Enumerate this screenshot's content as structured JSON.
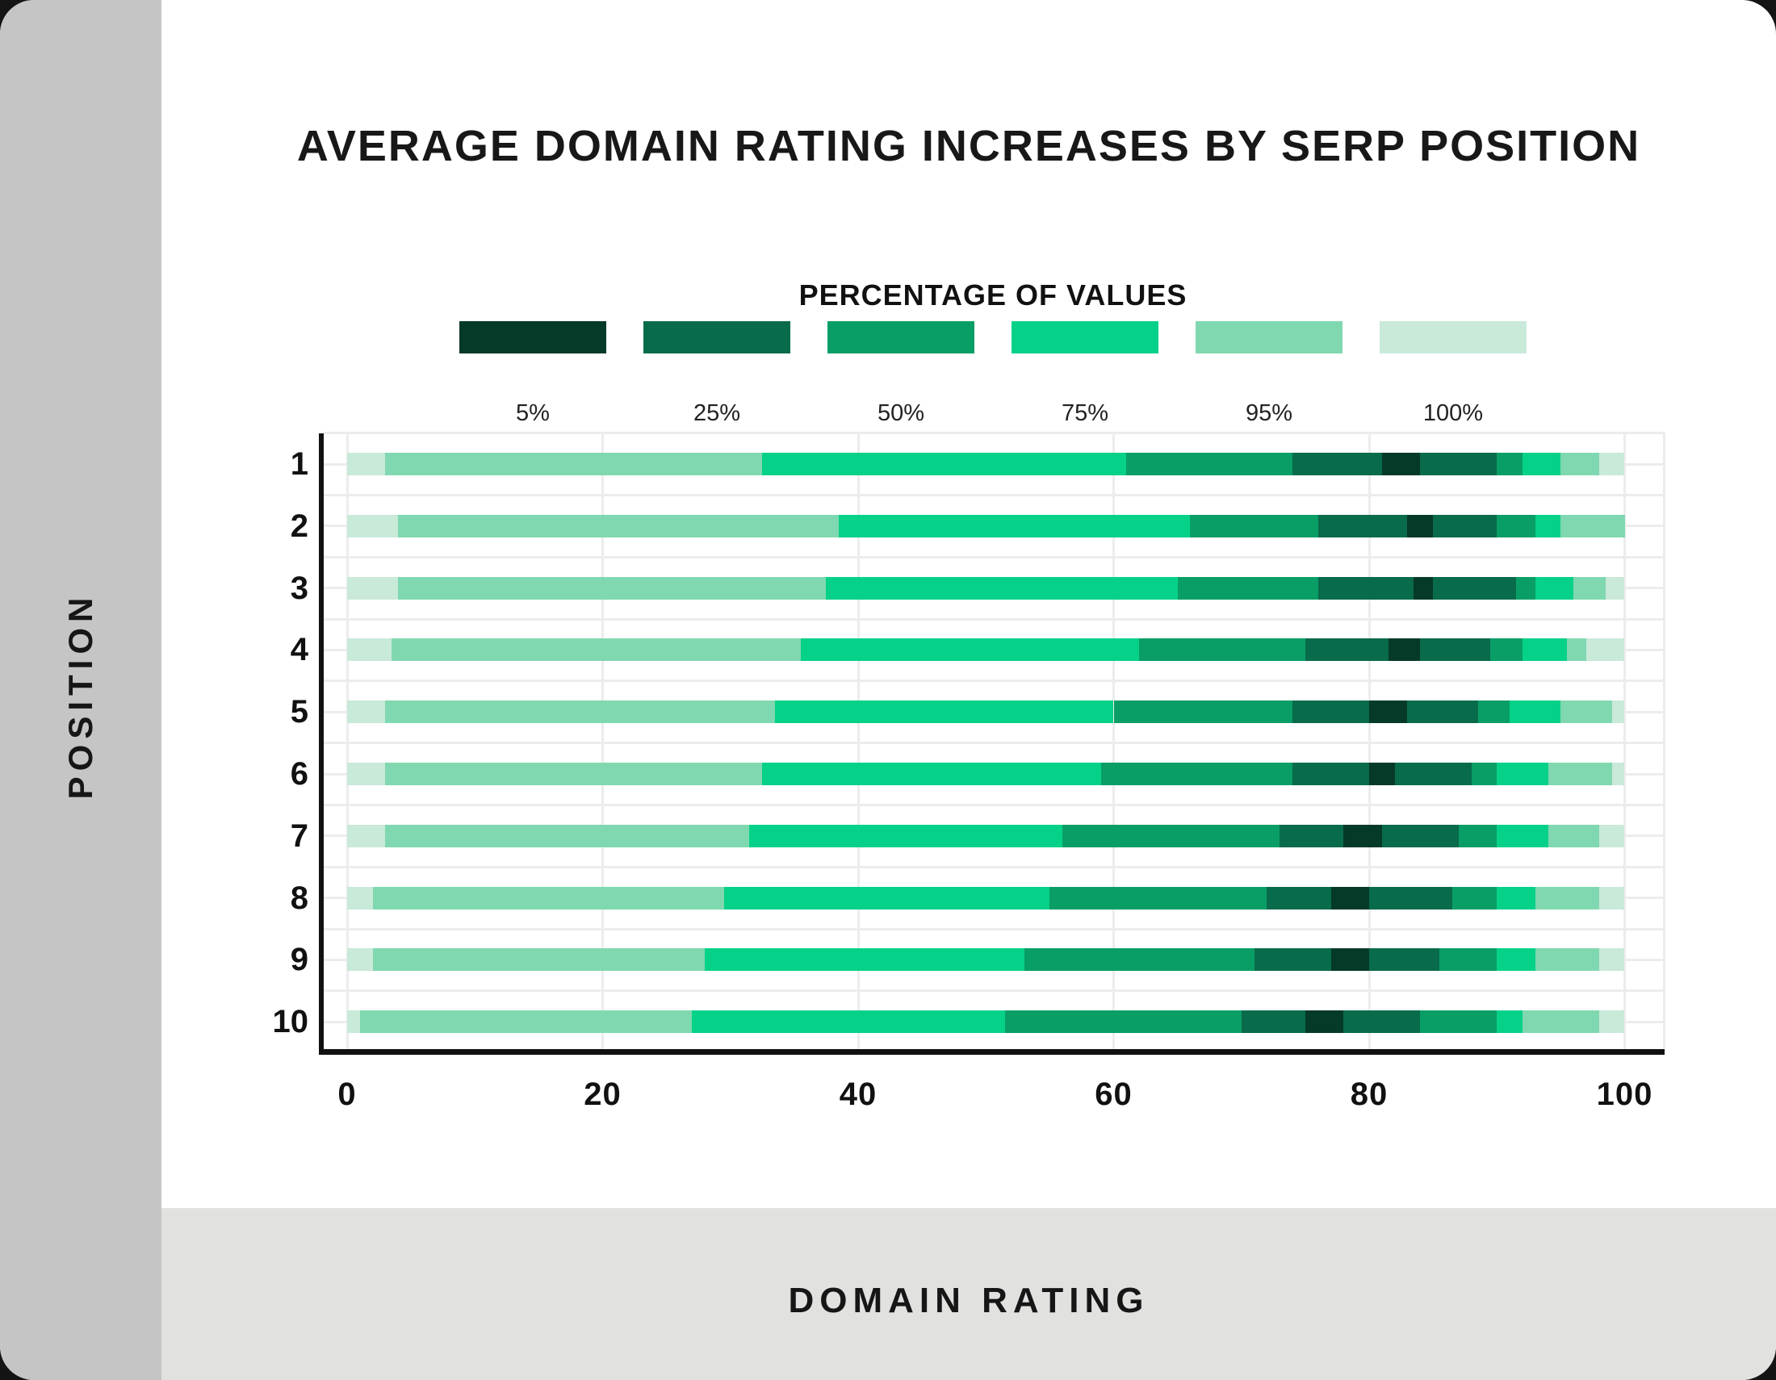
{
  "chart_data": {
    "type": "bar",
    "subtype": "nested-percentile-range-bars",
    "title": "AVERAGE DOMAIN RATING INCREASES BY SERP POSITION",
    "xlabel": "DOMAIN RATING",
    "ylabel": "POSITION",
    "legend_title": "PERCENTAGE OF VALUES",
    "x_ticks": [
      0,
      20,
      40,
      60,
      80,
      100
    ],
    "xlim": [
      0,
      100
    ],
    "grid": true,
    "legend_position": "top-center",
    "bands": [
      {
        "label": "5%",
        "color": "#053a28"
      },
      {
        "label": "25%",
        "color": "#086b4b"
      },
      {
        "label": "50%",
        "color": "#099e66"
      },
      {
        "label": "75%",
        "color": "#06d189"
      },
      {
        "label": "95%",
        "color": "#80d8b0"
      },
      {
        "label": "100%",
        "color": "#c9e9d9"
      }
    ],
    "categories": [
      "1",
      "2",
      "3",
      "4",
      "5",
      "6",
      "7",
      "8",
      "9",
      "10"
    ],
    "bars": [
      {
        "position": "1",
        "segments": [
          {
            "band": "100%",
            "from": 0,
            "to": 3
          },
          {
            "band": "95%",
            "from": 3,
            "to": 32.5
          },
          {
            "band": "75%",
            "from": 32.5,
            "to": 61
          },
          {
            "band": "50%",
            "from": 61,
            "to": 74
          },
          {
            "band": "25%",
            "from": 74,
            "to": 81
          },
          {
            "band": "5%",
            "from": 81,
            "to": 84
          },
          {
            "band": "25%",
            "from": 84,
            "to": 90
          },
          {
            "band": "50%",
            "from": 90,
            "to": 92
          },
          {
            "band": "75%",
            "from": 92,
            "to": 95
          },
          {
            "band": "95%",
            "from": 95,
            "to": 98
          },
          {
            "band": "100%",
            "from": 98,
            "to": 100
          }
        ]
      },
      {
        "position": "2",
        "segments": [
          {
            "band": "100%",
            "from": 0,
            "to": 4
          },
          {
            "band": "95%",
            "from": 4,
            "to": 38.5
          },
          {
            "band": "75%",
            "from": 38.5,
            "to": 66
          },
          {
            "band": "50%",
            "from": 66,
            "to": 76
          },
          {
            "band": "25%",
            "from": 76,
            "to": 83
          },
          {
            "band": "5%",
            "from": 83,
            "to": 85
          },
          {
            "band": "25%",
            "from": 85,
            "to": 90
          },
          {
            "band": "50%",
            "from": 90,
            "to": 93
          },
          {
            "band": "75%",
            "from": 93,
            "to": 95
          },
          {
            "band": "95%",
            "from": 95,
            "to": 100
          }
        ]
      },
      {
        "position": "3",
        "segments": [
          {
            "band": "100%",
            "from": 0,
            "to": 4
          },
          {
            "band": "95%",
            "from": 4,
            "to": 37.5
          },
          {
            "band": "75%",
            "from": 37.5,
            "to": 65
          },
          {
            "band": "50%",
            "from": 65,
            "to": 76
          },
          {
            "band": "25%",
            "from": 76,
            "to": 83.5
          },
          {
            "band": "5%",
            "from": 83.5,
            "to": 85
          },
          {
            "band": "25%",
            "from": 85,
            "to": 91.5
          },
          {
            "band": "50%",
            "from": 91.5,
            "to": 93
          },
          {
            "band": "75%",
            "from": 93,
            "to": 96
          },
          {
            "band": "95%",
            "from": 96,
            "to": 98.5
          },
          {
            "band": "100%",
            "from": 98.5,
            "to": 100
          }
        ]
      },
      {
        "position": "4",
        "segments": [
          {
            "band": "100%",
            "from": 0,
            "to": 3.5
          },
          {
            "band": "95%",
            "from": 3.5,
            "to": 35.5
          },
          {
            "band": "75%",
            "from": 35.5,
            "to": 62
          },
          {
            "band": "50%",
            "from": 62,
            "to": 75
          },
          {
            "band": "25%",
            "from": 75,
            "to": 81.5
          },
          {
            "band": "5%",
            "from": 81.5,
            "to": 84
          },
          {
            "band": "25%",
            "from": 84,
            "to": 89.5
          },
          {
            "band": "50%",
            "from": 89.5,
            "to": 92
          },
          {
            "band": "75%",
            "from": 92,
            "to": 95.5
          },
          {
            "band": "95%",
            "from": 95.5,
            "to": 97
          },
          {
            "band": "100%",
            "from": 97,
            "to": 100
          }
        ]
      },
      {
        "position": "5",
        "segments": [
          {
            "band": "100%",
            "from": 0,
            "to": 3
          },
          {
            "band": "95%",
            "from": 3,
            "to": 33.5
          },
          {
            "band": "75%",
            "from": 33.5,
            "to": 60
          },
          {
            "band": "50%",
            "from": 60,
            "to": 74
          },
          {
            "band": "25%",
            "from": 74,
            "to": 80
          },
          {
            "band": "5%",
            "from": 80,
            "to": 83
          },
          {
            "band": "25%",
            "from": 83,
            "to": 88.5
          },
          {
            "band": "50%",
            "from": 88.5,
            "to": 91
          },
          {
            "band": "75%",
            "from": 91,
            "to": 95
          },
          {
            "band": "95%",
            "from": 95,
            "to": 99
          },
          {
            "band": "100%",
            "from": 99,
            "to": 100
          }
        ]
      },
      {
        "position": "6",
        "segments": [
          {
            "band": "100%",
            "from": 0,
            "to": 3
          },
          {
            "band": "95%",
            "from": 3,
            "to": 32.5
          },
          {
            "band": "75%",
            "from": 32.5,
            "to": 59
          },
          {
            "band": "50%",
            "from": 59,
            "to": 74
          },
          {
            "band": "25%",
            "from": 74,
            "to": 80
          },
          {
            "band": "5%",
            "from": 80,
            "to": 82
          },
          {
            "band": "25%",
            "from": 82,
            "to": 88
          },
          {
            "band": "50%",
            "from": 88,
            "to": 90
          },
          {
            "band": "75%",
            "from": 90,
            "to": 94
          },
          {
            "band": "95%",
            "from": 94,
            "to": 99
          },
          {
            "band": "100%",
            "from": 99,
            "to": 100
          }
        ]
      },
      {
        "position": "7",
        "segments": [
          {
            "band": "100%",
            "from": 0,
            "to": 3
          },
          {
            "band": "95%",
            "from": 3,
            "to": 31.5
          },
          {
            "band": "75%",
            "from": 31.5,
            "to": 56
          },
          {
            "band": "50%",
            "from": 56,
            "to": 73
          },
          {
            "band": "25%",
            "from": 73,
            "to": 78
          },
          {
            "band": "5%",
            "from": 78,
            "to": 81
          },
          {
            "band": "25%",
            "from": 81,
            "to": 87
          },
          {
            "band": "50%",
            "from": 87,
            "to": 90
          },
          {
            "band": "75%",
            "from": 90,
            "to": 94
          },
          {
            "band": "95%",
            "from": 94,
            "to": 98
          },
          {
            "band": "100%",
            "from": 98,
            "to": 100
          }
        ]
      },
      {
        "position": "8",
        "segments": [
          {
            "band": "100%",
            "from": 0,
            "to": 2
          },
          {
            "band": "95%",
            "from": 2,
            "to": 29.5
          },
          {
            "band": "75%",
            "from": 29.5,
            "to": 55
          },
          {
            "band": "50%",
            "from": 55,
            "to": 72
          },
          {
            "band": "25%",
            "from": 72,
            "to": 77
          },
          {
            "band": "5%",
            "from": 77,
            "to": 80
          },
          {
            "band": "25%",
            "from": 80,
            "to": 86.5
          },
          {
            "band": "50%",
            "from": 86.5,
            "to": 90
          },
          {
            "band": "75%",
            "from": 90,
            "to": 93
          },
          {
            "band": "95%",
            "from": 93,
            "to": 98
          },
          {
            "band": "100%",
            "from": 98,
            "to": 100
          }
        ]
      },
      {
        "position": "9",
        "segments": [
          {
            "band": "100%",
            "from": 0,
            "to": 2
          },
          {
            "band": "95%",
            "from": 2,
            "to": 28
          },
          {
            "band": "75%",
            "from": 28,
            "to": 53
          },
          {
            "band": "50%",
            "from": 53,
            "to": 71
          },
          {
            "band": "25%",
            "from": 71,
            "to": 77
          },
          {
            "band": "5%",
            "from": 77,
            "to": 80
          },
          {
            "band": "25%",
            "from": 80,
            "to": 85.5
          },
          {
            "band": "50%",
            "from": 85.5,
            "to": 90
          },
          {
            "band": "75%",
            "from": 90,
            "to": 93
          },
          {
            "band": "95%",
            "from": 93,
            "to": 98
          },
          {
            "band": "100%",
            "from": 98,
            "to": 100
          }
        ]
      },
      {
        "position": "10",
        "segments": [
          {
            "band": "100%",
            "from": 0,
            "to": 1
          },
          {
            "band": "95%",
            "from": 1,
            "to": 27
          },
          {
            "band": "75%",
            "from": 27,
            "to": 51.5
          },
          {
            "band": "50%",
            "from": 51.5,
            "to": 70
          },
          {
            "band": "25%",
            "from": 70,
            "to": 75
          },
          {
            "band": "5%",
            "from": 75,
            "to": 78
          },
          {
            "band": "25%",
            "from": 78,
            "to": 84
          },
          {
            "band": "50%",
            "from": 84,
            "to": 90
          },
          {
            "band": "75%",
            "from": 90,
            "to": 92
          },
          {
            "band": "95%",
            "from": 92,
            "to": 98
          },
          {
            "band": "100%",
            "from": 98,
            "to": 100
          }
        ]
      }
    ]
  }
}
